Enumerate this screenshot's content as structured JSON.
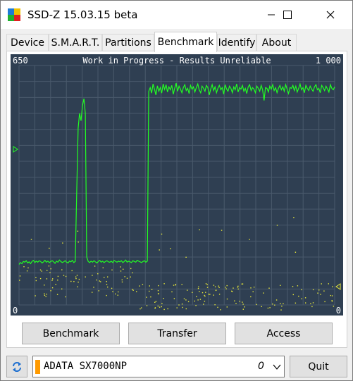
{
  "window": {
    "title": "SSD-Z 15.03.15 beta",
    "minimize_label": "minimize",
    "maximize_label": "maximize",
    "close_label": "close"
  },
  "tabs": [
    {
      "label": "Device",
      "active": false
    },
    {
      "label": "S.M.A.R.T.",
      "active": false
    },
    {
      "label": "Partitions",
      "active": false
    },
    {
      "label": "Benchmark",
      "active": true
    },
    {
      "label": "Identify",
      "active": false
    },
    {
      "label": "About",
      "active": false
    }
  ],
  "graph": {
    "title": "Work in Progress - Results Unreliable",
    "left_max": "650",
    "left_min": "0",
    "right_max": "1 000",
    "right_min": "0",
    "colors": {
      "background": "#2f3f52",
      "grid": "#4a5a6c",
      "line": "#22ff22",
      "dots": "#e8e83a"
    }
  },
  "chart_data": {
    "type": "line",
    "title": "Work in Progress - Results Unreliable",
    "ylim_left": [
      0,
      650
    ],
    "ylim_right": [
      0,
      1000
    ],
    "series": [
      {
        "values": [
          110,
          115,
          112,
          118,
          116,
          120,
          114,
          117,
          112,
          118,
          121,
          115,
          119,
          116,
          120,
          118,
          114,
          117,
          121,
          116,
          119,
          115,
          118,
          120,
          117,
          113,
          119,
          116,
          122,
          118,
          115,
          117,
          120,
          116,
          114,
          119,
          117,
          121,
          115,
          118,
          300,
          480,
          520,
          500,
          540,
          560,
          520,
          130,
          118,
          115,
          119,
          116,
          120,
          117,
          114,
          118,
          121,
          116,
          119,
          115,
          118,
          120,
          117,
          116,
          119,
          115,
          121,
          118,
          116,
          119,
          117,
          120,
          115,
          118,
          122,
          116,
          119,
          117,
          115,
          120,
          118,
          116,
          121,
          119,
          117,
          115,
          118,
          120,
          116,
          119,
          580,
          590,
          575,
          600,
          585,
          570,
          595,
          580,
          590,
          575,
          600,
          585,
          598,
          578,
          592,
          584,
          596,
          572,
          588,
          602,
          580,
          594,
          586,
          576,
          590,
          598,
          582,
          588,
          574,
          596,
          586,
          592,
          578,
          590,
          600,
          584,
          576,
          594,
          588,
          580,
          596,
          590,
          570,
          586,
          598,
          582,
          592,
          576,
          588,
          596,
          584,
          590,
          572,
          598,
          586,
          580,
          594,
          588,
          576,
          592,
          584,
          600,
          578,
          590,
          586,
          596,
          580,
          588,
          574,
          592,
          598,
          582,
          590,
          586,
          576,
          594,
          588,
          580,
          596,
          584,
          555,
          590,
          588,
          578,
          594,
          586,
          598,
          582,
          590,
          576,
          588,
          596,
          584,
          592,
          580,
          598,
          586,
          574,
          590,
          588,
          596,
          582,
          594,
          578,
          588,
          600,
          584,
          590,
          576,
          596,
          588,
          582,
          594,
          586,
          580,
          592,
          598,
          584,
          588,
          576,
          596,
          590,
          582,
          594,
          586,
          578,
          598,
          588,
          584,
          592
        ]
      }
    ]
  },
  "buttons": {
    "benchmark": "Benchmark",
    "transfer": "Transfer",
    "access": "Access"
  },
  "bottom": {
    "device_name": "ADATA SX7000NP",
    "device_index": "0",
    "device_color": "#ff9a00",
    "quit_label": "Quit"
  }
}
